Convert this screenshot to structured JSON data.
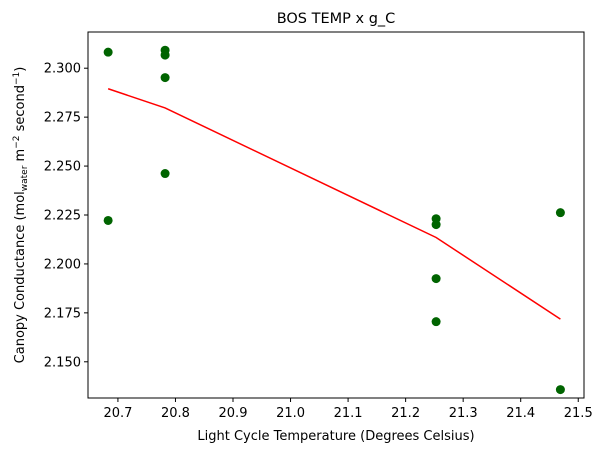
{
  "chart_data": {
    "type": "scatter",
    "title": "BOS TEMP x g_C",
    "xlabel": "Light Cycle Temperature (Degrees Celsius)",
    "ylabel": {
      "prefix": "Canopy Conductance (mol",
      "sub": "water",
      "middle": " m",
      "sup1": "−2",
      "middle2": " second",
      "sup2": "−1",
      "suffix": ")"
    },
    "xlim": [
      20.648,
      21.51
    ],
    "ylim": [
      2.1315,
      2.3185
    ],
    "x_ticks": [
      20.7,
      20.8,
      20.9,
      21.0,
      21.1,
      21.2,
      21.3,
      21.4,
      21.5
    ],
    "x_tick_labels": [
      "20.7",
      "20.8",
      "20.9",
      "21.0",
      "21.1",
      "21.2",
      "21.3",
      "21.4",
      "21.5"
    ],
    "y_ticks": [
      2.15,
      2.175,
      2.2,
      2.225,
      2.25,
      2.275,
      2.3
    ],
    "y_tick_labels": [
      "2.150",
      "2.175",
      "2.200",
      "2.225",
      "2.250",
      "2.275",
      "2.300"
    ],
    "grid": false,
    "series": [
      {
        "kind": "scatter",
        "color": "#006400",
        "points": [
          [
            20.683,
            2.3082
          ],
          [
            20.683,
            2.2222
          ],
          [
            20.782,
            2.3092
          ],
          [
            20.782,
            2.3067
          ],
          [
            20.782,
            2.2952
          ],
          [
            20.782,
            2.2462
          ],
          [
            21.253,
            2.2231
          ],
          [
            21.253,
            2.2201
          ],
          [
            21.253,
            2.1925
          ],
          [
            21.253,
            2.1705
          ],
          [
            21.469,
            2.2262
          ],
          [
            21.469,
            2.1358
          ]
        ]
      },
      {
        "kind": "line",
        "color": "#ff0000",
        "points": [
          [
            20.683,
            2.2895
          ],
          [
            20.782,
            2.2797
          ],
          [
            21.253,
            2.2135
          ],
          [
            21.469,
            2.1718
          ]
        ]
      }
    ]
  }
}
